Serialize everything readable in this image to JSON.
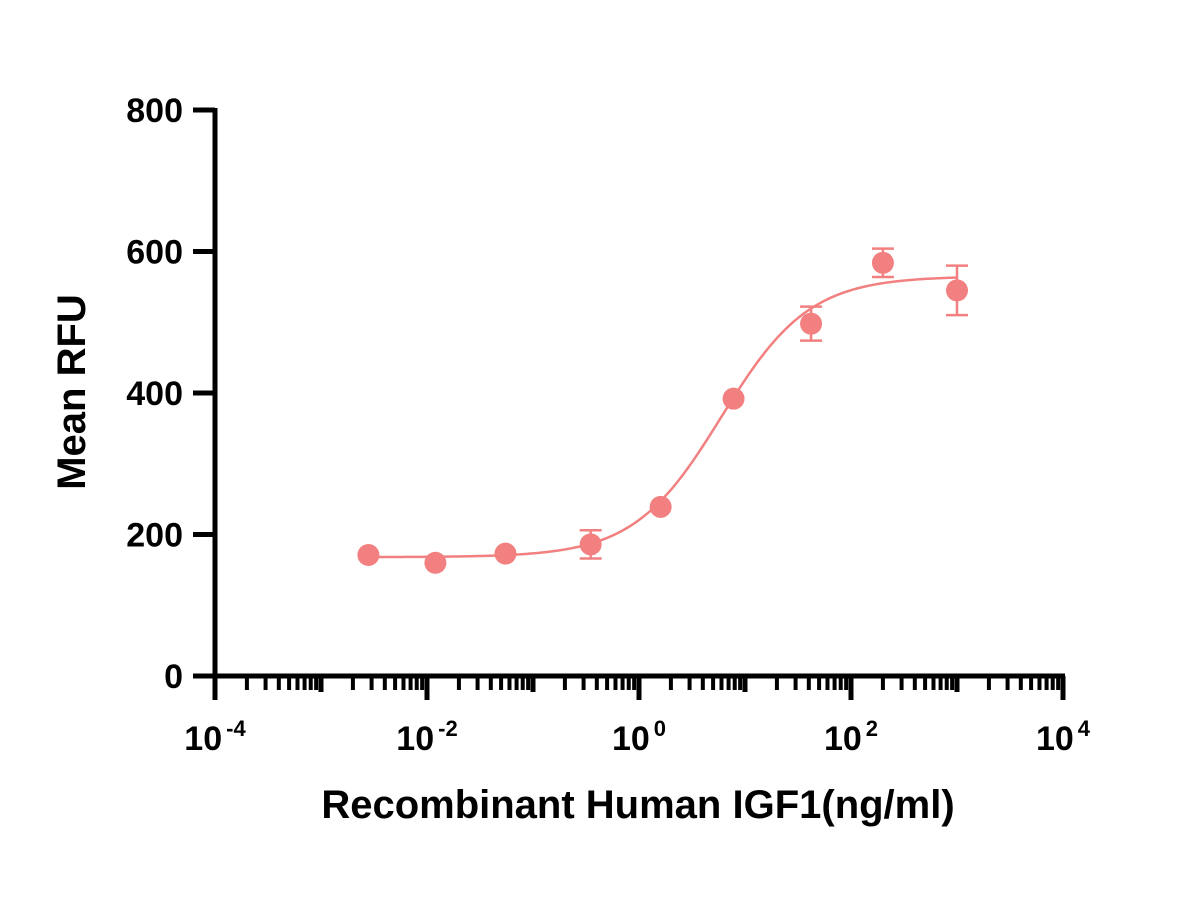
{
  "chart_data": {
    "type": "scatter",
    "title": "",
    "xlabel": "Recombinant Human IGF1(ng/ml)",
    "ylabel": "Mean RFU",
    "x_scale": "log10",
    "xlim": [
      0.0001,
      10000
    ],
    "ylim": [
      0,
      800
    ],
    "grid": false,
    "y_ticks": [
      {
        "value": 0,
        "label": "0"
      },
      {
        "value": 200,
        "label": "200"
      },
      {
        "value": 400,
        "label": "400"
      },
      {
        "value": 600,
        "label": "600"
      },
      {
        "value": 800,
        "label": "800"
      }
    ],
    "x_ticks": [
      {
        "value": 0.0001,
        "base": "10",
        "exp": "-4"
      },
      {
        "value": 0.01,
        "base": "10",
        "exp": "-2"
      },
      {
        "value": 1,
        "base": "10",
        "exp": "0"
      },
      {
        "value": 100,
        "base": "10",
        "exp": "2"
      },
      {
        "value": 10000,
        "base": "10",
        "exp": "4"
      }
    ],
    "series": [
      {
        "color": "#f28080",
        "points": [
          {
            "x": 0.0028,
            "y": 171,
            "err": 0
          },
          {
            "x": 0.012,
            "y": 160,
            "err": 0
          },
          {
            "x": 0.055,
            "y": 173,
            "err": 0
          },
          {
            "x": 0.35,
            "y": 186,
            "err": 20
          },
          {
            "x": 1.6,
            "y": 239,
            "err": 0
          },
          {
            "x": 7.8,
            "y": 392,
            "err": 0
          },
          {
            "x": 42,
            "y": 498,
            "err": 24
          },
          {
            "x": 200,
            "y": 584,
            "err": 20
          },
          {
            "x": 1000,
            "y": 545,
            "err": 35
          }
        ],
        "fit": {
          "model": "4PL",
          "bottom": 168,
          "top": 565,
          "ec50": 6.0,
          "hill": 1.05,
          "x_range": [
            0.0028,
            1000
          ]
        }
      }
    ]
  }
}
